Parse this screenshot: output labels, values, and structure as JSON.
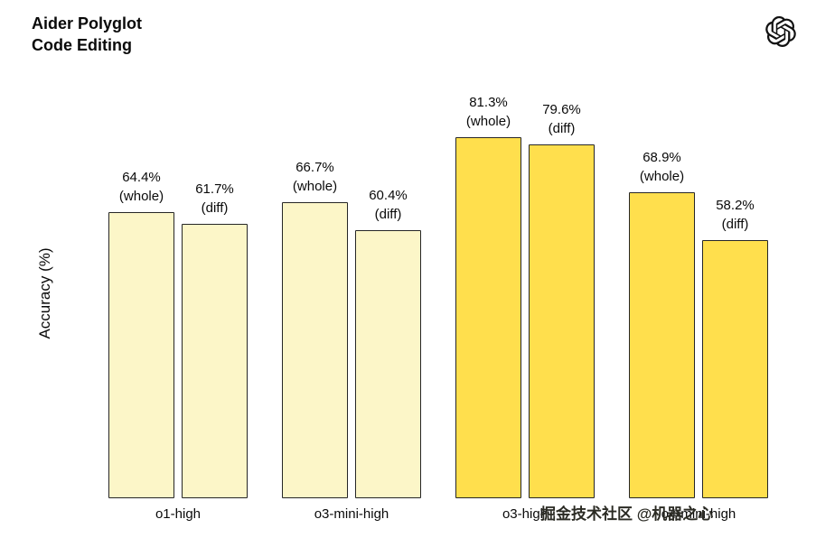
{
  "header": {
    "title_line1": "Aider Polyglot",
    "title_line2": "Code Editing",
    "logo_icon": "openai-logo-icon"
  },
  "watermark": "掘金技术社区 @机器之心",
  "colors": {
    "pale_yellow": "#FCF6C8",
    "bright_yellow": "#FFDF4D",
    "bar_border": "#262626",
    "text": "#0a0a0a"
  },
  "chart_data": {
    "type": "bar",
    "title": "Aider Polyglot Code Editing",
    "ylabel": "Accuracy (%)",
    "xlabel": "",
    "ylim": [
      0,
      100
    ],
    "grid": false,
    "legend_position": "none",
    "categories": [
      "o1-high",
      "o3-mini-high",
      "o3-high",
      "o4-mini-high"
    ],
    "series": [
      {
        "name": "whole",
        "values": [
          64.4,
          66.7,
          81.3,
          68.9
        ]
      },
      {
        "name": "diff",
        "values": [
          61.7,
          60.4,
          79.6,
          58.2
        ]
      }
    ],
    "bar_colors_by_category": [
      "#FCF6C8",
      "#FCF6C8",
      "#FFDF4D",
      "#FFDF4D"
    ],
    "annotations": [
      "64.4% (whole)",
      "61.7% (diff)",
      "66.7% (whole)",
      "60.4% (diff)",
      "81.3% (whole)",
      "79.6% (diff)",
      "68.9% (whole)",
      "58.2% (diff)"
    ]
  }
}
